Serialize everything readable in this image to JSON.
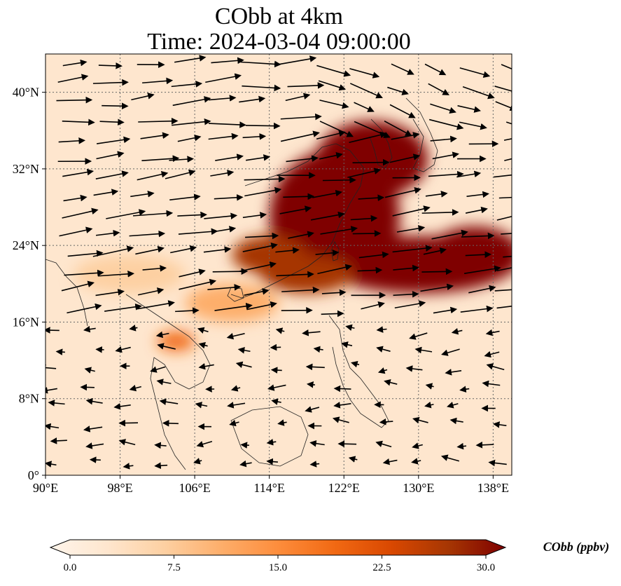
{
  "title_line1": "CObb at 4km",
  "title_line2": "Time: 2024-03-04 09:00:00",
  "colormap": [
    "#fff5eb",
    "#fee6ce",
    "#fdd0a2",
    "#fdae6b",
    "#fd8d3c",
    "#f16913",
    "#d94801",
    "#a63603",
    "#7f0000"
  ],
  "chart_data": {
    "type": "heatmap",
    "variable": "CObb",
    "xlim": [
      90,
      140
    ],
    "ylim": [
      0,
      44
    ],
    "x_ticks": [
      90,
      98,
      106,
      114,
      122,
      130,
      138
    ],
    "y_ticks": [
      0,
      8,
      16,
      24,
      32,
      40
    ],
    "x_tick_labels": [
      "90°E",
      "98°E",
      "106°E",
      "114°E",
      "122°E",
      "130°E",
      "138°E"
    ],
    "y_tick_labels": [
      "0°",
      "8°N",
      "16°N",
      "24°N",
      "32°N",
      "40°N"
    ],
    "grid": true,
    "wind_vectors": true,
    "colorbar": {
      "label": "CObb (ppbv)",
      "range": [
        0,
        30
      ],
      "ticks": [
        0.0,
        7.5,
        15.0,
        22.5,
        30.0
      ],
      "tick_labels": [
        "0.0",
        "7.5",
        "15.0",
        "22.5",
        "30.0"
      ],
      "extend": "both",
      "position": "bottom"
    },
    "plumes": [
      {
        "lon": 125,
        "lat": 33,
        "rx": 6,
        "ry": 4,
        "value": 30
      },
      {
        "lon": 121,
        "lat": 27,
        "rx": 7,
        "ry": 7,
        "value": 30
      },
      {
        "lon": 130,
        "lat": 22,
        "rx": 10,
        "ry": 3,
        "value": 30
      },
      {
        "lon": 136,
        "lat": 23,
        "rx": 5,
        "ry": 3,
        "value": 30
      },
      {
        "lon": 118,
        "lat": 21,
        "rx": 5,
        "ry": 2,
        "value": 28
      },
      {
        "lon": 114,
        "lat": 23,
        "rx": 4,
        "ry": 2,
        "value": 26
      },
      {
        "lon": 104,
        "lat": 14,
        "rx": 2,
        "ry": 1,
        "value": 20
      },
      {
        "lon": 99,
        "lat": 21,
        "rx": 6,
        "ry": 2,
        "value": 9
      },
      {
        "lon": 110,
        "lat": 18,
        "rx": 5,
        "ry": 2,
        "value": 10
      },
      {
        "lon": 128,
        "lat": 12,
        "rx": 6,
        "ry": 3,
        "value": 3
      },
      {
        "lon": 94,
        "lat": 10,
        "rx": 4,
        "ry": 4,
        "value": 4
      }
    ]
  }
}
